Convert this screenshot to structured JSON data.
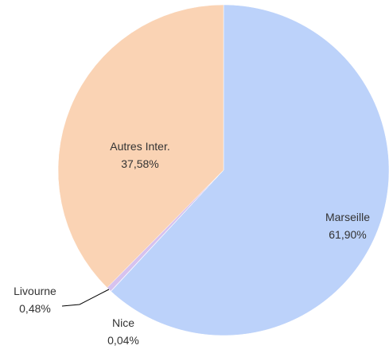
{
  "chart_data": {
    "type": "pie",
    "categories": [
      "Marseille",
      "Nice",
      "Livourne",
      "Autres Inter."
    ],
    "values": [
      61.9,
      0.04,
      0.48,
      37.58
    ],
    "value_labels": [
      "61,90%",
      "0,04%",
      "0,48%",
      "37,58%"
    ],
    "colors": [
      "#bcd2fa",
      "#c2aee2",
      "#d6c2ef",
      "#fad3b4"
    ]
  }
}
